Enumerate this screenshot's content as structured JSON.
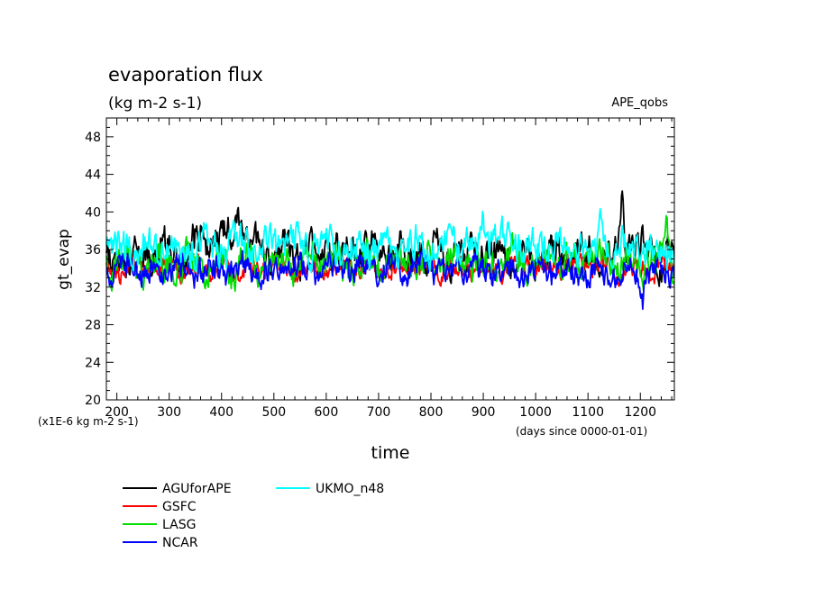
{
  "chart_data": {
    "type": "line",
    "title": "evaporation flux",
    "subtitle": "(kg m-2 s-1)",
    "top_right_label": "APE_qobs",
    "ylabel": "gt_evap",
    "xlabel": "time",
    "y_unit_note": "(x1E-6 kg m-2 s-1)",
    "x_unit_note": "(days since 0000-01-01)",
    "xlim": [
      180,
      1265
    ],
    "ylim": [
      20,
      50
    ],
    "x_ticks": [
      200,
      300,
      400,
      500,
      600,
      700,
      800,
      900,
      1000,
      1100,
      1200
    ],
    "y_ticks": [
      20,
      24,
      28,
      32,
      36,
      40,
      44,
      48
    ],
    "grid": false,
    "legend_position": "bottom-left",
    "series": [
      {
        "name": "AGUforAPE",
        "color": "#000000",
        "mean": 35.4,
        "amplitude": 2.2,
        "x_start": 180,
        "x_end": 1265,
        "x": [
          180,
          300,
          420,
          500,
          600,
          700,
          800,
          900,
          1000,
          1100,
          1165,
          1265
        ],
        "y": [
          34.5,
          35.8,
          37.5,
          35.6,
          36.0,
          35.8,
          35.4,
          35.6,
          35.4,
          35.6,
          36.3,
          35.0
        ],
        "notable_points": [
          {
            "x": 430,
            "y": 41.0
          },
          {
            "x": 1165,
            "y": 41.0
          }
        ]
      },
      {
        "name": "GSFC",
        "color": "#ff0000",
        "mean": 34.0,
        "amplitude": 1.2,
        "x_start": 180,
        "x_end": 1265,
        "x": [
          180,
          400,
          700,
          1000,
          1265
        ],
        "y": [
          33.9,
          34.0,
          33.9,
          34.1,
          34.0
        ]
      },
      {
        "name": "LASG",
        "color": "#00dd00",
        "mean": 34.6,
        "amplitude": 2.0,
        "x_start": 180,
        "x_end": 1265,
        "x": [
          180,
          400,
          700,
          1000,
          1265
        ],
        "y": [
          34.6,
          34.5,
          34.7,
          34.8,
          34.6
        ],
        "notable_points": [
          {
            "x": 1250,
            "y": 37.5
          }
        ]
      },
      {
        "name": "NCAR",
        "color": "#0000ff",
        "mean": 33.8,
        "amplitude": 1.6,
        "x_start": 180,
        "x_end": 1265,
        "x": [
          180,
          400,
          700,
          1000,
          1265
        ],
        "y": [
          33.8,
          33.8,
          33.9,
          33.8,
          33.7
        ],
        "notable_points": [
          {
            "x": 1205,
            "y": 30.3
          }
        ]
      },
      {
        "name": "UKMO_n48",
        "color": "#00ffff",
        "mean": 36.3,
        "amplitude": 2.0,
        "x_start": 180,
        "x_end": 1265,
        "x": [
          180,
          400,
          700,
          900,
          1000,
          1265
        ],
        "y": [
          36.0,
          36.4,
          36.3,
          37.2,
          36.4,
          36.2
        ],
        "notable_points": [
          {
            "x": 900,
            "y": 41.2
          },
          {
            "x": 1125,
            "y": 40.3
          }
        ]
      }
    ]
  }
}
